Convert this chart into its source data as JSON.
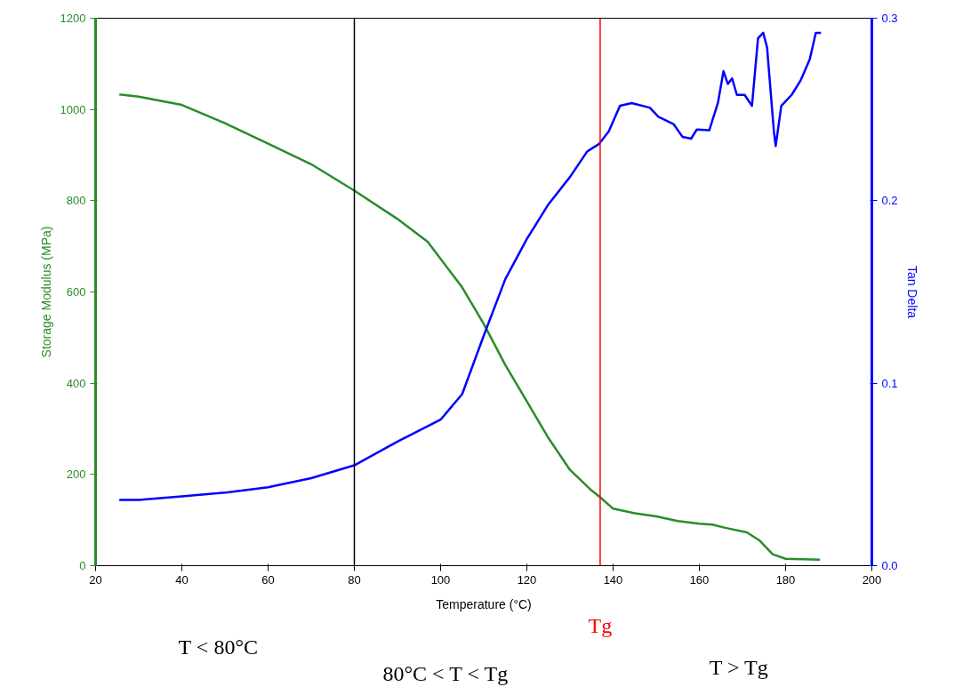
{
  "chart_data": {
    "type": "line",
    "xlabel": "Temperature (°C)",
    "ylabel": "Storage Modulus (MPa)",
    "y2label": "Tan Delta",
    "xlim": [
      20,
      200
    ],
    "xticks": [
      20,
      40,
      60,
      80,
      100,
      120,
      140,
      160,
      180,
      200
    ],
    "ylim": [
      0,
      1200
    ],
    "yticks": [
      0,
      200,
      400,
      600,
      800,
      1000,
      1200
    ],
    "y2lim": [
      0,
      0.3
    ],
    "y2ticks": [
      {
        "value": 0,
        "label": "0.0"
      },
      {
        "value": 0.1,
        "label": "0.1"
      },
      {
        "value": 0.2,
        "label": "0.2"
      },
      {
        "value": 0.3,
        "label": "0.3"
      }
    ],
    "grid": false,
    "marker": "none",
    "line_style": "solid",
    "series": [
      {
        "color": "#2a8c2a",
        "x": [
          25.5,
          30,
          40,
          50,
          60,
          70,
          80,
          90,
          97,
          105,
          110,
          115,
          120,
          125,
          130,
          135,
          137,
          140,
          145,
          150,
          155,
          160,
          163,
          166,
          171,
          174,
          177,
          180,
          188
        ],
        "values": [
          1033,
          1028,
          1010,
          970,
          925,
          880,
          822,
          760,
          710,
          610,
          530,
          440,
          360,
          280,
          210,
          165,
          150,
          125,
          115,
          108,
          98,
          92,
          90,
          83,
          73,
          55,
          25,
          15,
          13
        ]
      },
      {
        "color": "#0000ff",
        "axis": "y2",
        "x": [
          25.5,
          30,
          40,
          50,
          60,
          70,
          80,
          90,
          100,
          105,
          110,
          115,
          120,
          125,
          130,
          134,
          136.7,
          139,
          141.6,
          144.3,
          148.5,
          150.5,
          154,
          156.1,
          158.1,
          159.4,
          162.3,
          164.3,
          165.6,
          166.6,
          167.6,
          168.7,
          170.5,
          172.2,
          173.6,
          174.8,
          175.7,
          177.3,
          177.7,
          179,
          181.4,
          183.5,
          185.6,
          187,
          188.2
        ],
        "values": [
          0.036,
          0.036,
          0.038,
          0.04,
          0.043,
          0.048,
          0.055,
          0.068,
          0.08,
          0.094,
          0.126,
          0.157,
          0.179,
          0.198,
          0.213,
          0.227,
          0.231,
          0.238,
          0.252,
          0.2535,
          0.251,
          0.246,
          0.242,
          0.235,
          0.234,
          0.239,
          0.2386,
          0.2535,
          0.271,
          0.264,
          0.267,
          0.258,
          0.258,
          0.252,
          0.289,
          0.292,
          0.284,
          0.2376,
          0.23,
          0.252,
          0.258,
          0.266,
          0.2775,
          0.292,
          0.292
        ]
      }
    ],
    "ref_lines": [
      {
        "axis": "x",
        "value": 80,
        "label": null,
        "color": "#000000"
      },
      {
        "axis": "x",
        "value": 137,
        "label": "Tg",
        "color": "#ff0000"
      }
    ],
    "annotations": [
      "T < 80°C",
      "80°C < T < Tg",
      "T > Tg"
    ]
  }
}
